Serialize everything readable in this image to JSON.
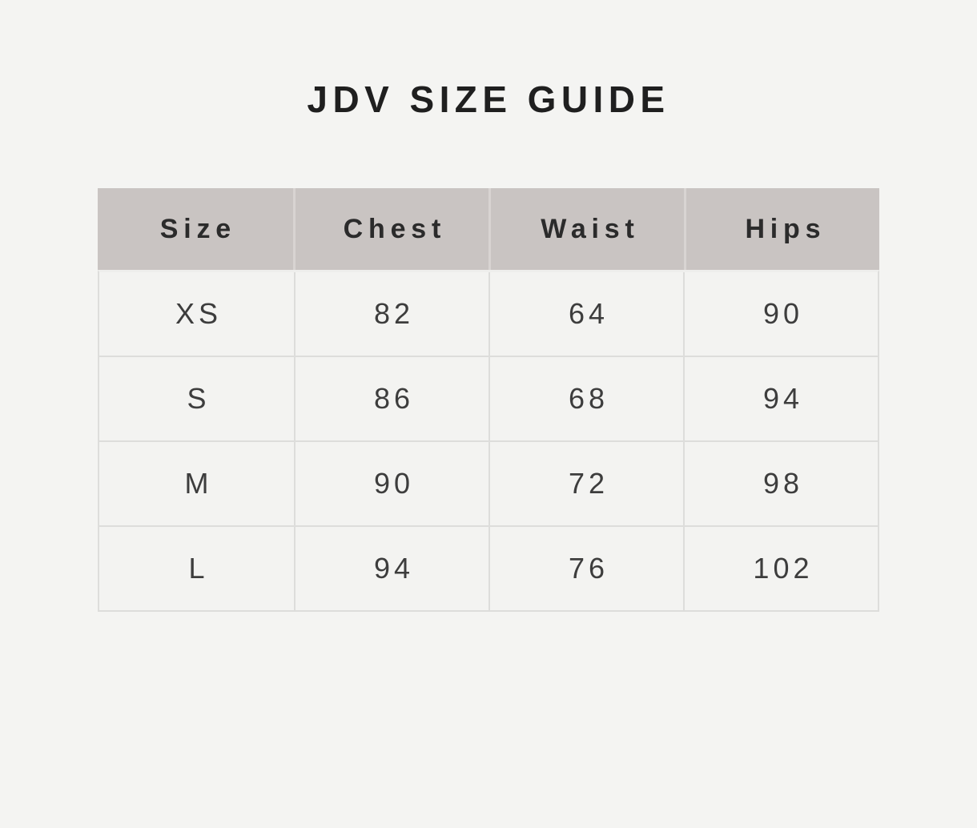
{
  "page": {
    "title": "JDV SIZE GUIDE"
  },
  "colors": {
    "page_background": "#f4f4f2",
    "header_background": "#c9c4c2",
    "header_divider": "#d8d4d2",
    "body_cell_background": "#f3f3f1",
    "body_border": "#dddddb",
    "title_text": "#1f1f1f",
    "header_text": "#2b2b2b",
    "cell_text": "#3d3d3d"
  },
  "table": {
    "headers": [
      "Size",
      "Chest",
      "Waist",
      "Hips"
    ],
    "rows": [
      [
        "XS",
        "82",
        "64",
        "90"
      ],
      [
        "S",
        "86",
        "68",
        "94"
      ],
      [
        "M",
        "90",
        "72",
        "98"
      ],
      [
        "L",
        "94",
        "76",
        "102"
      ]
    ]
  }
}
